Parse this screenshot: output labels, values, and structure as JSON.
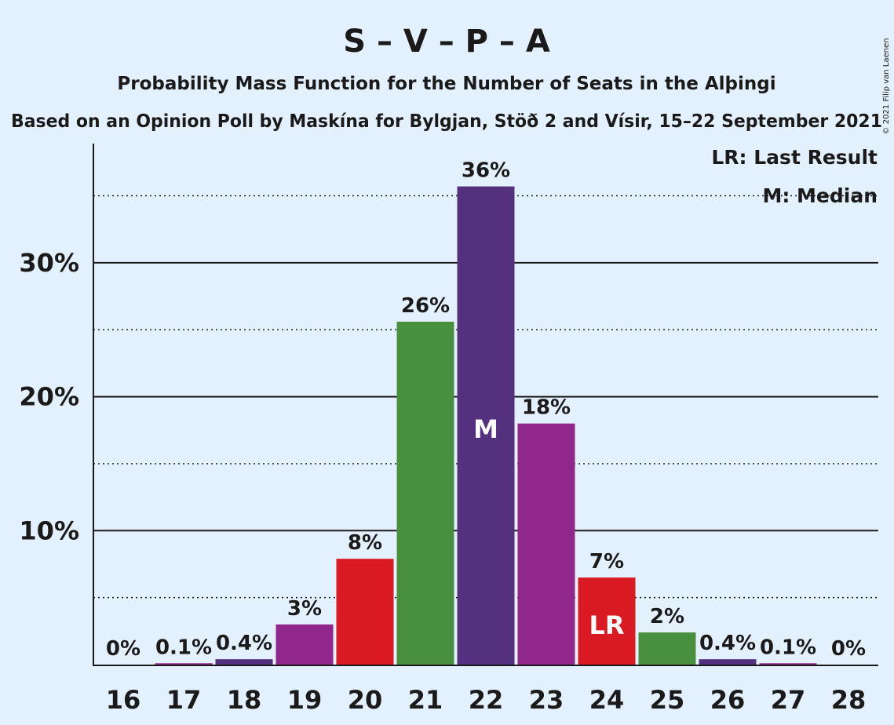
{
  "title": "S – V – P – A",
  "subtitle1": "Probability Mass Function for the Number of Seats in the Alþingi",
  "subtitle2": "Based on an Opinion Poll by Maskína for Bylgjan, Stöð 2 and Vísir, 15–22 September 2021",
  "copyright": "© 2021 Filip van Laenen",
  "legend": {
    "last_result": "LR: Last Result",
    "median": "M: Median"
  },
  "colors": {
    "background": "#e3f1fe",
    "red": "#d91a22",
    "green": "#48903f",
    "purple": "#91268c",
    "dark_purple": "#54317e"
  },
  "chart_data": {
    "type": "bar",
    "categories": [
      "16",
      "17",
      "18",
      "19",
      "20",
      "21",
      "22",
      "23",
      "24",
      "25",
      "26",
      "27",
      "28"
    ],
    "values": [
      0,
      0.1,
      0.4,
      3,
      7.9,
      25.6,
      35.7,
      18,
      6.5,
      2.4,
      0.4,
      0.1,
      0
    ],
    "labels": [
      "0%",
      "0.1%",
      "0.4%",
      "3%",
      "8%",
      "26%",
      "36%",
      "18%",
      "7%",
      "2%",
      "0.4%",
      "0.1%",
      "0%"
    ],
    "bar_colors": [
      "#48903f",
      "#91268c",
      "#54317e",
      "#91268c",
      "#d91a22",
      "#48903f",
      "#54317e",
      "#91268c",
      "#d91a22",
      "#48903f",
      "#54317e",
      "#91268c",
      "#d91a22"
    ],
    "median_category": "22",
    "median_label": "M",
    "last_result_category": "24",
    "last_result_label": "LR",
    "yticks": [
      10,
      20,
      30
    ],
    "ytick_labels": [
      "10%",
      "20%",
      "30%"
    ],
    "minor_gridlines": [
      5,
      15,
      25,
      35
    ],
    "ylim": [
      0,
      39
    ]
  }
}
